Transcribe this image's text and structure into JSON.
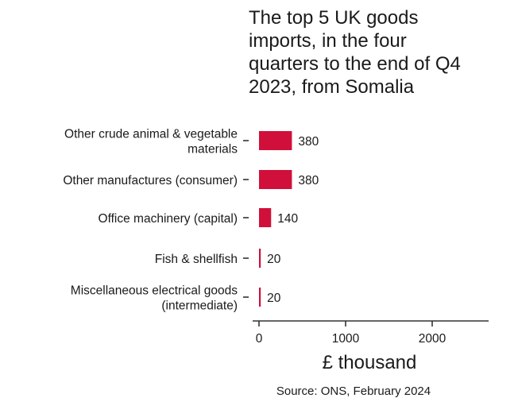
{
  "chart_data": {
    "type": "bar",
    "orientation": "horizontal",
    "title_lines": [
      "The top 5 UK goods",
      "imports, in the four",
      "quarters to the end of Q4",
      "2023, from Somalia"
    ],
    "categories": [
      [
        "Other crude animal & vegetable",
        "materials"
      ],
      [
        "Other manufactures (consumer)"
      ],
      [
        "Office machinery (capital)"
      ],
      [
        "Fish & shellfish"
      ],
      [
        "Miscellaneous electrical goods",
        "(intermediate)"
      ]
    ],
    "values": [
      380,
      380,
      140,
      20,
      20
    ],
    "value_labels": [
      "380",
      "380",
      "140",
      "20",
      "20"
    ],
    "xlabel": "£ thousand",
    "xticks": [
      0,
      1000,
      2000
    ],
    "xtick_labels": [
      "0",
      "1000",
      "2000"
    ],
    "xlim": [
      0,
      2650
    ],
    "bar_color": "#d0103a",
    "grid": false,
    "source": "Source: ONS, February 2024"
  }
}
